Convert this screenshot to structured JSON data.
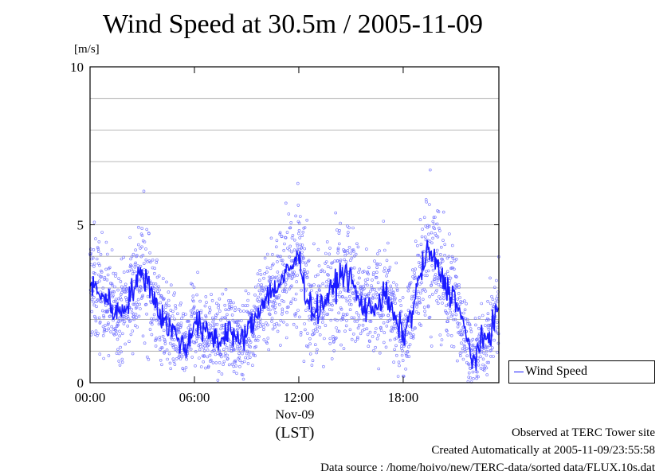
{
  "title": "Wind Speed at 30.5m / 2005-11-09",
  "chart_data": {
    "type": "line+scatter",
    "ylabel": "[m/s]",
    "ylim": [
      0,
      10
    ],
    "yticks": [
      {
        "value": 0,
        "label": "0"
      },
      {
        "value": 5,
        "label": "5"
      },
      {
        "value": 10,
        "label": "10"
      }
    ],
    "xlim_hours": [
      0,
      23.5
    ],
    "xticks": [
      {
        "value": 0,
        "label": "00:00"
      },
      {
        "value": 6,
        "label": "06:00"
      },
      {
        "value": 12,
        "label": "12:00"
      },
      {
        "value": 18,
        "label": "18:00"
      }
    ],
    "grid": "horizontal",
    "legend": "right",
    "series": [
      {
        "name": "Wind Speed",
        "color": "#1a1aff",
        "x_hours": [
          0,
          0.5,
          1,
          1.5,
          2,
          2.5,
          3,
          3.5,
          4,
          4.5,
          5,
          5.5,
          6,
          6.5,
          7,
          7.5,
          8,
          8.5,
          9,
          9.5,
          10,
          10.5,
          11,
          11.5,
          12,
          12.5,
          13,
          13.5,
          14,
          14.5,
          15,
          15.5,
          16,
          16.5,
          17,
          17.5,
          18,
          18.5,
          19,
          19.5,
          20,
          20.5,
          21,
          21.5,
          22,
          22.5,
          23,
          23.5
        ],
        "y": [
          3.1,
          2.9,
          2.6,
          2.2,
          2.4,
          3.0,
          3.5,
          3.0,
          2.2,
          1.8,
          1.5,
          1.0,
          2.0,
          1.6,
          1.5,
          1.3,
          1.8,
          1.2,
          1.6,
          2.0,
          2.7,
          2.9,
          3.2,
          3.6,
          4.0,
          2.6,
          2.2,
          2.6,
          3.0,
          3.5,
          3.3,
          2.5,
          2.3,
          2.5,
          2.8,
          2.0,
          1.5,
          2.2,
          3.5,
          4.2,
          3.6,
          3.0,
          2.7,
          1.7,
          0.7,
          1.2,
          1.6,
          2.4
        ]
      }
    ]
  },
  "xaxis": {
    "date": "Nov-09",
    "tz": "(LST)"
  },
  "legend": {
    "label": "Wind Speed"
  },
  "footer": {
    "line1": "Observed at TERC Tower site",
    "line2": "Created Automatically at 2005-11-09/23:55:58",
    "line3": "Data source : /home/hoivo/new/TERC-data/sorted  data/FLUX.10s.dat"
  }
}
